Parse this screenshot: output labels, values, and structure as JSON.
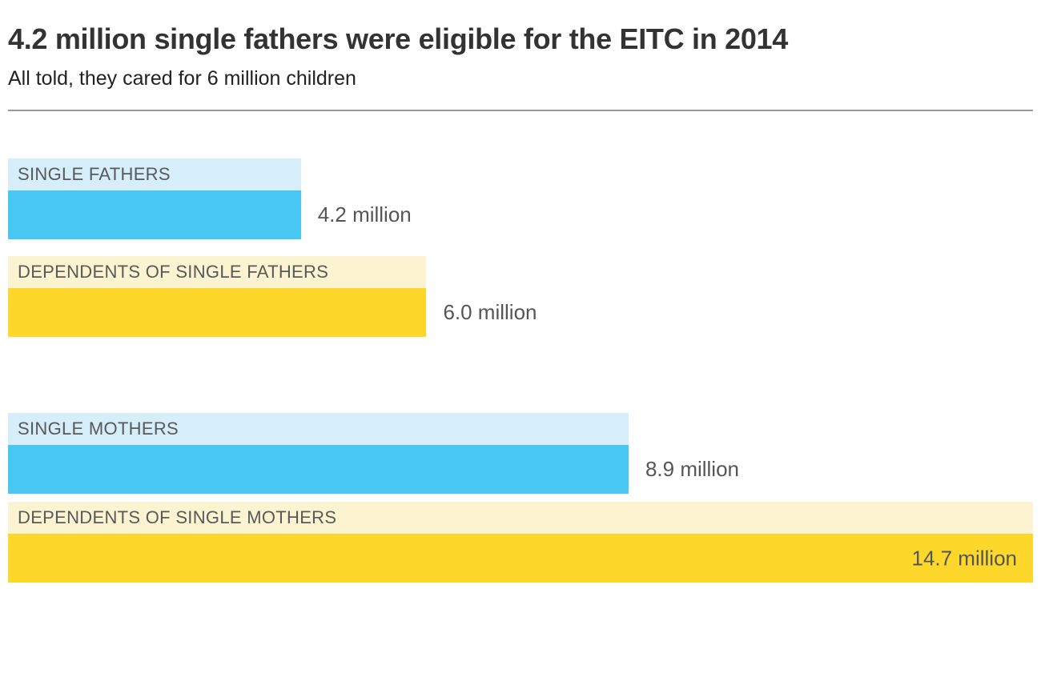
{
  "header": {
    "title": "4.2 million single fathers were eligible for the EITC in 2014",
    "subtitle": "All told, they cared for 6 million children"
  },
  "colors": {
    "blue": "#47C7F2",
    "blue_light": "#D5EEFA",
    "yellow": "#FDD82B",
    "yellow_light": "#FCF3D0",
    "title_text": "#333333",
    "subtitle_text": "#222222",
    "category_text": "#58595B",
    "value_text": "#555555",
    "divider": "#999999"
  },
  "chart_data": {
    "type": "bar",
    "orientation": "horizontal",
    "title": "4.2 million single fathers were eligible for the EITC in 2014",
    "subtitle": "All told, they cared for 6 million children",
    "unit": "million",
    "xlim": [
      0,
      14.7
    ],
    "grid": false,
    "legend": false,
    "categories": [
      "SINGLE FATHERS",
      "DEPENDENTS OF SINGLE FATHERS",
      "SINGLE MOTHERS",
      "DEPENDENTS OF SINGLE MOTHERS"
    ],
    "values": [
      4.2,
      6.0,
      8.9,
      14.7
    ],
    "bars": [
      {
        "label": "SINGLE FATHERS",
        "value": 4.2,
        "value_label": "4.2 million",
        "bar_color": "#47C7F2",
        "band_color": "#D5EEFA",
        "value_position": "outside",
        "group": "fathers"
      },
      {
        "label": "DEPENDENTS OF SINGLE FATHERS",
        "value": 6.0,
        "value_label": "6.0 million",
        "bar_color": "#FDD82B",
        "band_color": "#FCF3D0",
        "value_position": "outside",
        "group": "fathers"
      },
      {
        "label": "SINGLE MOTHERS",
        "value": 8.9,
        "value_label": "8.9 million",
        "bar_color": "#47C7F2",
        "band_color": "#D5EEFA",
        "value_position": "outside",
        "group": "mothers"
      },
      {
        "label": "DEPENDENTS OF SINGLE MOTHERS",
        "value": 14.7,
        "value_label": "14.7 million",
        "bar_color": "#FDD82B",
        "band_color": "#FCF3D0",
        "value_position": "inside",
        "group": "mothers"
      }
    ]
  }
}
